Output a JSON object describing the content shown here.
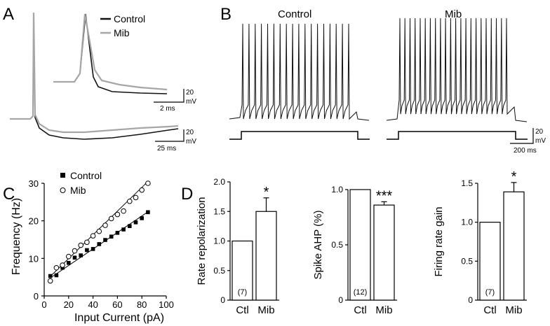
{
  "panels": {
    "A": "A",
    "B": "B",
    "C": "C",
    "D": "D"
  },
  "colors": {
    "control": "#111111",
    "mib": "#a6a6a6"
  },
  "panelA": {
    "legend": [
      "Control",
      "Mib"
    ],
    "scale_inset": {
      "v": "20",
      "v_unit": "mV",
      "t": "2 ms"
    },
    "scale_main": {
      "v": "20",
      "v_unit": "mV",
      "t": "25 ms"
    }
  },
  "panelB": {
    "title_control": "Control",
    "title_mib": "Mib",
    "control_spike_count": 18,
    "mib_spike_count": 22,
    "scale": {
      "v": "20",
      "v_unit": "mV",
      "t": "200 ms"
    }
  },
  "chart_data": [
    {
      "id": "C",
      "type": "scatter",
      "xlabel": "Input Current (pA)",
      "ylabel": "Frequency (Hz)",
      "xlim": [
        0,
        100
      ],
      "ylim": [
        0,
        30
      ],
      "xticks": [
        0,
        20,
        40,
        60,
        80,
        100
      ],
      "yticks": [
        0,
        10,
        20,
        30
      ],
      "series": [
        {
          "name": "Control",
          "marker": "filled-square",
          "x": [
            5,
            10,
            15,
            20,
            25,
            30,
            35,
            40,
            45,
            50,
            55,
            60,
            65,
            70,
            75,
            80,
            85
          ],
          "y": [
            5.3,
            5.5,
            7.5,
            8.8,
            10.2,
            10.8,
            12.2,
            12.5,
            13.8,
            14.9,
            15.8,
            16.8,
            17.7,
            18.6,
            19.6,
            20.7,
            22.3
          ],
          "fit": [
            [
              5,
              4.8
            ],
            [
              85,
              22.4
            ]
          ]
        },
        {
          "name": "Mib",
          "marker": "open-circle",
          "x": [
            5,
            10,
            15,
            20,
            25,
            30,
            35,
            40,
            45,
            50,
            55,
            60,
            65,
            70,
            75,
            80,
            85
          ],
          "y": [
            4.0,
            7.5,
            8.2,
            10.5,
            12.0,
            13.5,
            14.3,
            16.0,
            17.2,
            18.8,
            20.6,
            21.7,
            22.6,
            25.2,
            26.2,
            28.2,
            30.0
          ],
          "fit": [
            [
              5,
              5.2
            ],
            [
              85,
              30.5
            ]
          ]
        }
      ]
    },
    {
      "id": "D1",
      "type": "bar",
      "ylabel": "Rate repolarization",
      "categories": [
        "Ctl",
        "Mib"
      ],
      "values": [
        1.0,
        1.5
      ],
      "errors": [
        0,
        0.23
      ],
      "ylim": [
        0,
        2.0
      ],
      "yticks": [
        "0",
        "0.5",
        "1.0",
        "1.5",
        "2.0"
      ],
      "n_label": "(7)",
      "significance": "*"
    },
    {
      "id": "D2",
      "type": "bar",
      "ylabel": "Spike AHP (%)",
      "categories": [
        "Ctl",
        "Mib"
      ],
      "values": [
        1.0,
        0.86
      ],
      "errors": [
        0,
        0.03
      ],
      "ylim": [
        0,
        1.0
      ],
      "yticks": [
        "0",
        "0.5",
        "1.0"
      ],
      "n_label": "(12)",
      "significance": "***"
    },
    {
      "id": "D3",
      "type": "bar",
      "ylabel": "Firing rate gain",
      "categories": [
        "Ctl",
        "Mib"
      ],
      "values": [
        1.0,
        1.39
      ],
      "errors": [
        0,
        0.12
      ],
      "ylim": [
        0,
        1.5
      ],
      "yticks": [
        "0",
        "0.5",
        "1.0",
        "1.5"
      ],
      "n_label": "(7)",
      "significance": "*"
    }
  ]
}
